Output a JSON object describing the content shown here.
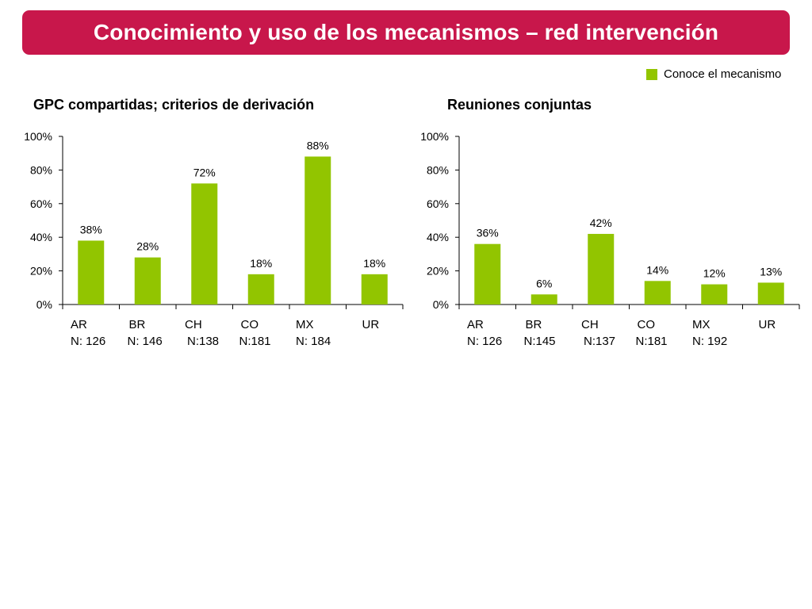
{
  "header": {
    "title": "Conocimiento y uso de los mecanismos – red intervención"
  },
  "legend": {
    "label": "Conoce el mecanismo",
    "color": "#92c500"
  },
  "chart_data": [
    {
      "type": "bar",
      "title": "GPC compartidas; criterios de derivación",
      "categories": [
        "AR",
        "BR",
        "CH",
        "CO",
        "MX",
        "UR"
      ],
      "n_labels": [
        "N: 126",
        "N: 146",
        "N:138",
        "N:181",
        "N: 184",
        ""
      ],
      "series": [
        {
          "name": "Conoce el mecanismo",
          "values": [
            38,
            28,
            72,
            18,
            88,
            18
          ]
        }
      ],
      "value_labels": [
        "38%",
        "28%",
        "72%",
        "18%",
        "88%",
        "18%"
      ],
      "yticks": [
        "0%",
        "20%",
        "40%",
        "60%",
        "80%",
        "100%"
      ],
      "ylim": [
        0,
        100
      ],
      "grid": false,
      "legend_position": "top-right"
    },
    {
      "type": "bar",
      "title": "Reuniones conjuntas",
      "categories": [
        "AR",
        "BR",
        "CH",
        "CO",
        "MX",
        "UR"
      ],
      "n_labels": [
        "N: 126",
        "N:145",
        "N:137",
        "N:181",
        "N: 192",
        ""
      ],
      "series": [
        {
          "name": "Conoce el mecanismo",
          "values": [
            36,
            6,
            42,
            14,
            12,
            13
          ]
        }
      ],
      "value_labels": [
        "36%",
        "6%",
        "42%",
        "14%",
        "12%",
        "13%"
      ],
      "yticks": [
        "0%",
        "20%",
        "40%",
        "60%",
        "80%",
        "100%"
      ],
      "ylim": [
        0,
        100
      ],
      "grid": false,
      "legend_position": "top-right"
    }
  ]
}
